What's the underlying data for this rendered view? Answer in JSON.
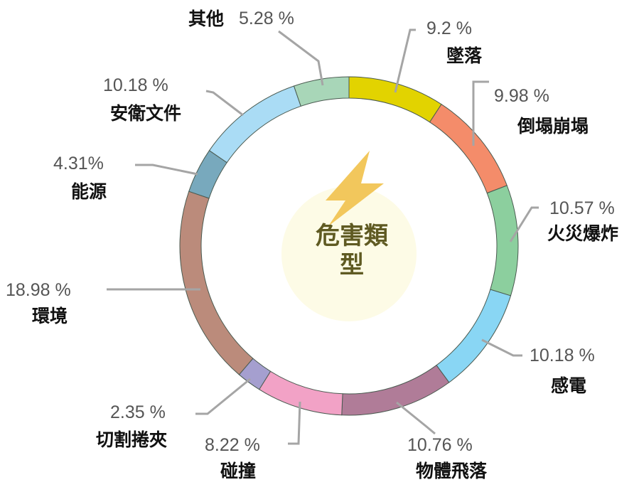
{
  "chart_data": {
    "type": "pie",
    "donut": true,
    "title": "危害類型",
    "center_icon": "lightning-bolt-icon",
    "unit": "%",
    "slices": [
      {
        "label": "墜落",
        "value": 9.2,
        "display": "9.2 %",
        "color": "#e2d300"
      },
      {
        "label": "倒塌崩塌",
        "value": 9.98,
        "display": "9.98 %",
        "color": "#f48c6a"
      },
      {
        "label": "火災爆炸",
        "value": 10.57,
        "display": "10.57 %",
        "color": "#8ccf9e"
      },
      {
        "label": "感電",
        "value": 10.18,
        "display": "10.18 %",
        "color": "#89d6f4"
      },
      {
        "label": "物體飛落",
        "value": 10.76,
        "display": "10.76 %",
        "color": "#b07c98"
      },
      {
        "label": "碰撞",
        "value": 8.22,
        "display": "8.22 %",
        "color": "#f2a2c6"
      },
      {
        "label": "切割捲夾",
        "value": 2.35,
        "display": "2.35 %",
        "color": "#a59fcf"
      },
      {
        "label": "環境",
        "value": 18.98,
        "display": "18.98 %",
        "color": "#bb8b7b"
      },
      {
        "label": "能源",
        "value": 4.31,
        "display": "4.31%",
        "color": "#78a9bd"
      },
      {
        "label": "安衛文件",
        "value": 10.18,
        "display": "10.18 %",
        "color": "#aadcf5"
      },
      {
        "label": "其他",
        "value": 5.28,
        "display": "5.28 %",
        "color": "#a8d6b8"
      }
    ]
  }
}
